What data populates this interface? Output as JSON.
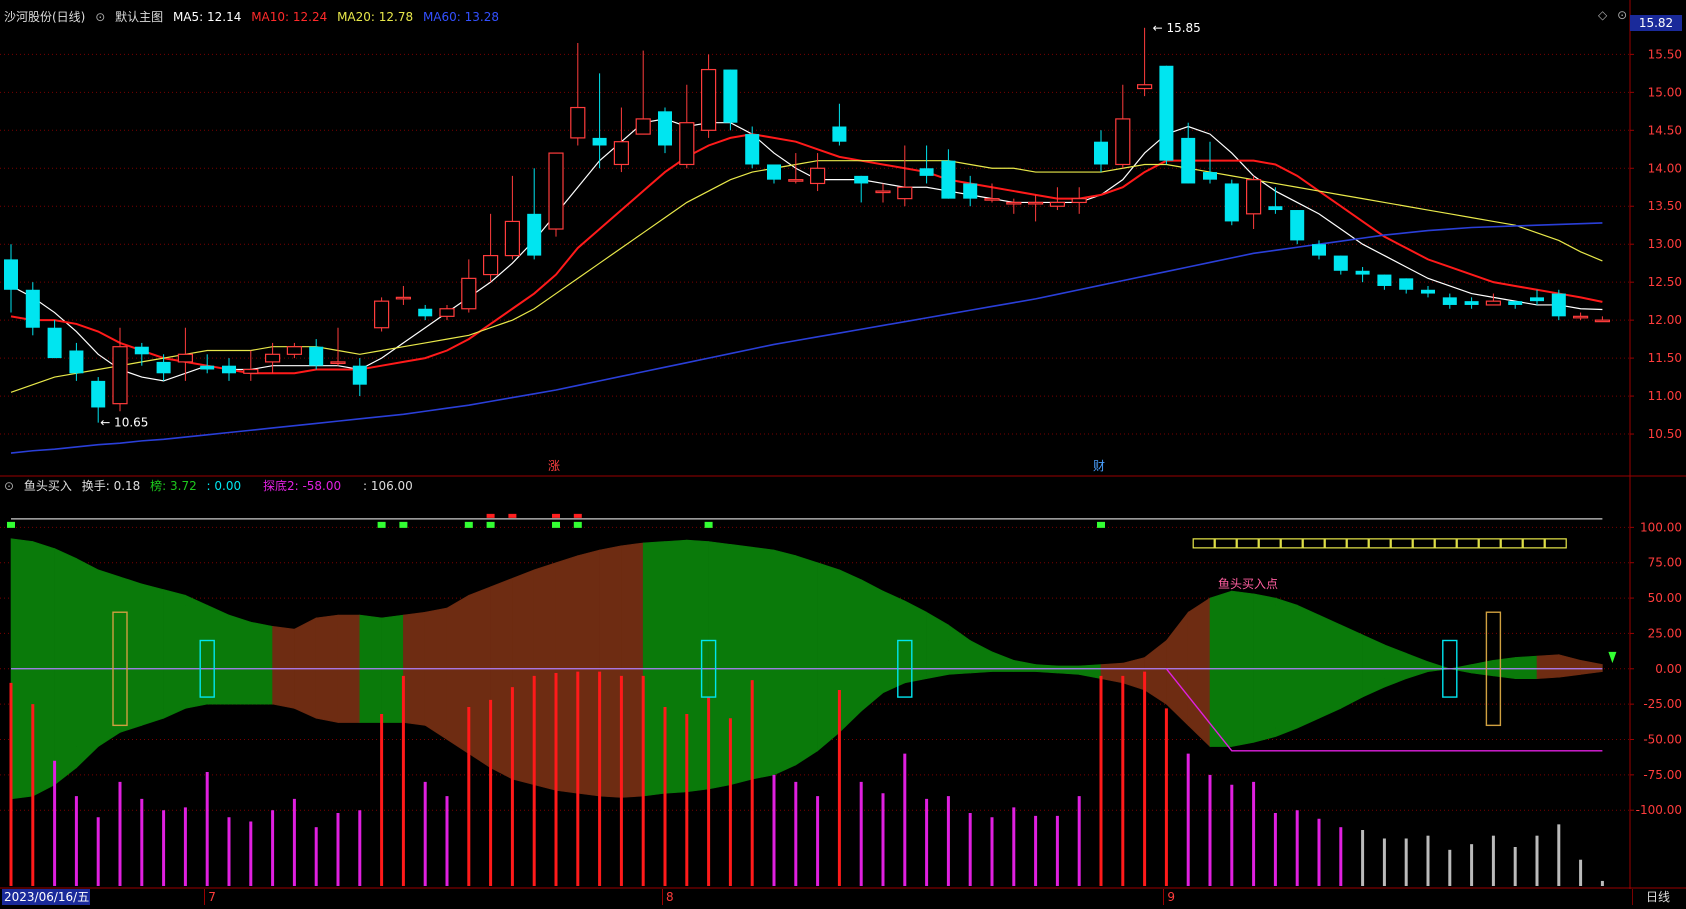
{
  "colors": {
    "up": "#ff3c3c",
    "down": "#00e5f0",
    "ma5": "#ffffff",
    "ma10": "#ff1a1a",
    "ma20": "#e8e84a",
    "ma60": "#2a3fd8",
    "green_fill": "#0a7a0a",
    "brown_fill": "#6e2c12",
    "magenta": "#e020e0",
    "grid": "#7a0000"
  },
  "main_header": {
    "title": "沙河股份(日线)",
    "view_label": "默认主图",
    "ma5_label": "MA5: 12.14",
    "ma10_label": "MA10: 12.24",
    "ma20_label": "MA20: 12.78",
    "ma60_label": "MA60: 13.28"
  },
  "sub_header": {
    "indicator_name": "鱼头买入",
    "turnover_label": "换手: 0.18",
    "v1_label": "榜: 3.72",
    "v2_label": ": 0.00",
    "v3_label": "探底2: -58.00",
    "v4_label": ": 106.00"
  },
  "current_price_tag": "15.82",
  "bottom_bar": {
    "date_label": "2023/06/16/五",
    "month_labels": [
      "7",
      "8",
      "9"
    ],
    "period_button": "日线"
  },
  "chart_data": [
    {
      "type": "candlestick",
      "price_axis_ticks": [
        "15.50",
        "15.00",
        "14.50",
        "14.00",
        "13.50",
        "13.00",
        "12.50",
        "12.00",
        "11.50",
        "11.00",
        "10.50"
      ],
      "ylim": [
        10.0,
        15.9
      ],
      "annotations": {
        "high_label": "15.85",
        "low_label": "10.65",
        "marker_1": "涨",
        "marker_2": "财"
      },
      "ohlc": [
        [
          12.8,
          12.4,
          13.0,
          12.1
        ],
        [
          12.4,
          11.9,
          12.5,
          11.8
        ],
        [
          11.9,
          11.5,
          12.0,
          11.5
        ],
        [
          11.6,
          11.3,
          11.7,
          11.2
        ],
        [
          11.2,
          10.85,
          11.25,
          10.65
        ],
        [
          10.9,
          11.65,
          11.9,
          10.8
        ],
        [
          11.65,
          11.55,
          11.7,
          11.4
        ],
        [
          11.45,
          11.3,
          11.55,
          11.2
        ],
        [
          11.45,
          11.55,
          11.9,
          11.2
        ],
        [
          11.4,
          11.35,
          11.55,
          11.3
        ],
        [
          11.4,
          11.3,
          11.5,
          11.2
        ],
        [
          11.3,
          11.35,
          11.6,
          11.2
        ],
        [
          11.45,
          11.55,
          11.7,
          11.3
        ],
        [
          11.55,
          11.65,
          11.7,
          11.5
        ],
        [
          11.65,
          11.4,
          11.75,
          11.35
        ],
        [
          11.45,
          11.45,
          11.9,
          11.4
        ],
        [
          11.4,
          11.15,
          11.5,
          11.0
        ],
        [
          11.9,
          12.25,
          12.3,
          11.85
        ],
        [
          12.3,
          12.3,
          12.45,
          12.2
        ],
        [
          12.15,
          12.05,
          12.2,
          12.0
        ],
        [
          12.05,
          12.15,
          12.2,
          12.0
        ],
        [
          12.15,
          12.55,
          12.8,
          12.1
        ],
        [
          12.6,
          12.85,
          13.4,
          12.5
        ],
        [
          12.85,
          13.3,
          13.9,
          12.8
        ],
        [
          13.4,
          12.85,
          14.0,
          12.8
        ],
        [
          13.2,
          14.2,
          14.2,
          13.1
        ],
        [
          14.4,
          14.8,
          15.65,
          14.3
        ],
        [
          14.4,
          14.3,
          15.25,
          14.0
        ],
        [
          14.05,
          14.35,
          14.8,
          13.95
        ],
        [
          14.45,
          14.65,
          15.55,
          14.5
        ],
        [
          14.75,
          14.3,
          14.8,
          14.2
        ],
        [
          14.05,
          14.6,
          15.1,
          14.0
        ],
        [
          14.5,
          15.3,
          15.5,
          14.4
        ],
        [
          15.3,
          14.6,
          15.3,
          14.5
        ],
        [
          14.45,
          14.05,
          14.55,
          14.0
        ],
        [
          14.05,
          13.85,
          14.05,
          13.8
        ],
        [
          13.85,
          13.85,
          14.2,
          13.8
        ],
        [
          13.8,
          14.0,
          14.2,
          13.7
        ],
        [
          14.55,
          14.35,
          14.85,
          14.3
        ],
        [
          13.9,
          13.8,
          13.9,
          13.55
        ],
        [
          13.7,
          13.7,
          13.8,
          13.55
        ],
        [
          13.6,
          13.75,
          14.3,
          13.5
        ],
        [
          14.0,
          13.9,
          14.3,
          13.8
        ],
        [
          14.1,
          13.6,
          14.25,
          13.6
        ],
        [
          13.8,
          13.6,
          13.9,
          13.5
        ],
        [
          13.6,
          13.6,
          13.8,
          13.55
        ],
        [
          13.55,
          13.55,
          13.6,
          13.4
        ],
        [
          13.55,
          13.55,
          13.65,
          13.3
        ],
        [
          13.5,
          13.55,
          13.75,
          13.45
        ],
        [
          13.55,
          13.6,
          13.75,
          13.4
        ],
        [
          14.35,
          14.05,
          14.5,
          13.95
        ],
        [
          14.05,
          14.65,
          15.1,
          14.0
        ],
        [
          15.05,
          15.1,
          15.85,
          14.95
        ],
        [
          15.35,
          14.1,
          15.35,
          14.05
        ],
        [
          14.4,
          13.8,
          14.6,
          13.8
        ],
        [
          13.95,
          13.85,
          14.35,
          13.8
        ],
        [
          13.8,
          13.3,
          13.85,
          13.25
        ],
        [
          13.4,
          13.85,
          13.9,
          13.2
        ],
        [
          13.5,
          13.45,
          13.75,
          13.4
        ],
        [
          13.45,
          13.05,
          13.45,
          13.0
        ],
        [
          13.0,
          12.85,
          13.05,
          12.8
        ],
        [
          12.85,
          12.65,
          12.85,
          12.6
        ],
        [
          12.65,
          12.6,
          12.7,
          12.5
        ],
        [
          12.6,
          12.45,
          12.6,
          12.4
        ],
        [
          12.55,
          12.4,
          12.55,
          12.35
        ],
        [
          12.4,
          12.35,
          12.45,
          12.3
        ],
        [
          12.3,
          12.2,
          12.35,
          12.15
        ],
        [
          12.25,
          12.2,
          12.3,
          12.15
        ],
        [
          12.2,
          12.25,
          12.35,
          12.2
        ],
        [
          12.25,
          12.2,
          12.25,
          12.15
        ],
        [
          12.3,
          12.25,
          12.4,
          12.2
        ],
        [
          12.35,
          12.05,
          12.4,
          12.0
        ],
        [
          12.05,
          12.05,
          12.1,
          12.0
        ],
        [
          12.0,
          12.0,
          12.05,
          11.98
        ]
      ],
      "series": [
        {
          "name": "MA5",
          "values": [
            12.45,
            12.3,
            12.1,
            11.85,
            11.55,
            11.35,
            11.25,
            11.2,
            11.3,
            11.4,
            11.35,
            11.35,
            11.4,
            11.4,
            11.4,
            11.4,
            11.35,
            11.5,
            11.7,
            11.9,
            12.1,
            12.3,
            12.5,
            12.75,
            13.05,
            13.4,
            13.75,
            14.1,
            14.35,
            14.6,
            14.65,
            14.55,
            14.6,
            14.6,
            14.45,
            14.2,
            14.0,
            13.85,
            13.85,
            13.85,
            13.8,
            13.75,
            13.75,
            13.7,
            13.65,
            13.6,
            13.55,
            13.55,
            13.55,
            13.55,
            13.65,
            13.85,
            14.2,
            14.45,
            14.55,
            14.45,
            14.2,
            13.9,
            13.7,
            13.55,
            13.4,
            13.2,
            13.0,
            12.85,
            12.7,
            12.55,
            12.45,
            12.35,
            12.3,
            12.25,
            12.2,
            12.2,
            12.15,
            12.14
          ]
        },
        {
          "name": "MA10",
          "values": [
            12.05,
            12.0,
            12.0,
            11.95,
            11.85,
            11.7,
            11.6,
            11.5,
            11.45,
            11.4,
            11.35,
            11.3,
            11.3,
            11.3,
            11.35,
            11.35,
            11.35,
            11.4,
            11.45,
            11.5,
            11.6,
            11.75,
            11.95,
            12.15,
            12.35,
            12.6,
            12.95,
            13.2,
            13.45,
            13.7,
            13.95,
            14.15,
            14.3,
            14.4,
            14.45,
            14.4,
            14.35,
            14.25,
            14.15,
            14.1,
            14.05,
            14.0,
            13.95,
            13.85,
            13.8,
            13.75,
            13.7,
            13.65,
            13.6,
            13.6,
            13.65,
            13.75,
            13.95,
            14.1,
            14.1,
            14.1,
            14.1,
            14.1,
            14.05,
            13.9,
            13.7,
            13.5,
            13.3,
            13.1,
            12.95,
            12.8,
            12.7,
            12.6,
            12.5,
            12.45,
            12.4,
            12.35,
            12.3,
            12.24
          ]
        },
        {
          "name": "MA20",
          "values": [
            11.05,
            11.15,
            11.25,
            11.3,
            11.35,
            11.4,
            11.45,
            11.5,
            11.55,
            11.6,
            11.6,
            11.6,
            11.65,
            11.65,
            11.65,
            11.6,
            11.55,
            11.6,
            11.65,
            11.7,
            11.75,
            11.8,
            11.9,
            12.0,
            12.15,
            12.35,
            12.55,
            12.75,
            12.95,
            13.15,
            13.35,
            13.55,
            13.7,
            13.85,
            13.95,
            14.0,
            14.05,
            14.1,
            14.1,
            14.1,
            14.1,
            14.1,
            14.1,
            14.1,
            14.05,
            14.0,
            14.0,
            13.95,
            13.95,
            13.95,
            13.95,
            14.0,
            14.05,
            14.05,
            14.0,
            13.95,
            13.9,
            13.85,
            13.8,
            13.75,
            13.7,
            13.65,
            13.6,
            13.55,
            13.5,
            13.45,
            13.4,
            13.35,
            13.3,
            13.25,
            13.15,
            13.05,
            12.9,
            12.78
          ]
        },
        {
          "name": "MA60",
          "values": [
            10.25,
            10.28,
            10.3,
            10.33,
            10.36,
            10.38,
            10.41,
            10.43,
            10.46,
            10.49,
            10.52,
            10.55,
            10.58,
            10.61,
            10.64,
            10.67,
            10.7,
            10.73,
            10.76,
            10.8,
            10.84,
            10.88,
            10.93,
            10.98,
            11.03,
            11.08,
            11.14,
            11.2,
            11.26,
            11.32,
            11.38,
            11.44,
            11.5,
            11.56,
            11.62,
            11.68,
            11.73,
            11.78,
            11.83,
            11.88,
            11.93,
            11.98,
            12.03,
            12.08,
            12.13,
            12.18,
            12.23,
            12.28,
            12.34,
            12.4,
            12.46,
            12.52,
            12.58,
            12.64,
            12.7,
            12.76,
            12.82,
            12.88,
            12.92,
            12.96,
            13.0,
            13.04,
            13.08,
            13.12,
            13.15,
            13.18,
            13.2,
            13.22,
            13.23,
            13.24,
            13.25,
            13.26,
            13.27,
            13.28
          ]
        }
      ]
    },
    {
      "type": "indicator",
      "axis_ticks": [
        "100.00",
        "75.00",
        "50.00",
        "25.00",
        "0.00",
        "-25.00",
        "-50.00",
        "-75.00",
        "-100.00"
      ],
      "ylim": [
        -155,
        125
      ],
      "annotation": "鱼头买入点",
      "bars": [
        -10,
        -25,
        -65,
        -90,
        -105,
        -80,
        -92,
        -100,
        -98,
        -73,
        -105,
        -108,
        -100,
        -92,
        -112,
        -102,
        -100,
        -32,
        -5,
        -80,
        -90,
        -27,
        -22,
        -13,
        -5,
        -3,
        -2,
        -2,
        -5,
        -5,
        -27,
        -32,
        -20,
        -35,
        -8,
        -75,
        -80,
        -90,
        -15,
        -80,
        -88,
        -60,
        -92,
        -90,
        -102,
        -105,
        -98,
        -104,
        -104,
        -90,
        -5,
        -5,
        -2,
        -28,
        -60,
        -75,
        -82,
        -80,
        -102,
        -100,
        -106,
        -112,
        -114,
        -120,
        -120,
        -118,
        -128,
        -124,
        -118,
        -126,
        -118,
        -110,
        -135,
        -150
      ],
      "upper_band": [
        92,
        90,
        85,
        78,
        70,
        65,
        60,
        56,
        52,
        45,
        38,
        33,
        30,
        28,
        36,
        38,
        38,
        36,
        38,
        40,
        43,
        52,
        58,
        64,
        70,
        75,
        80,
        84,
        87,
        89,
        90,
        91,
        90,
        88,
        86,
        84,
        80,
        75,
        70,
        63,
        55,
        48,
        40,
        31,
        20,
        12,
        6,
        3,
        2,
        2,
        3,
        4,
        8,
        20,
        40,
        50,
        55,
        53,
        50,
        45,
        38,
        31,
        24,
        17,
        11,
        5,
        0,
        3,
        6,
        8,
        9,
        10,
        6,
        3
      ],
      "lower_band": [
        -92,
        -90,
        -82,
        -70,
        -55,
        -45,
        -40,
        -35,
        -28,
        -25,
        -25,
        -25,
        -25,
        -28,
        -35,
        -38,
        -38,
        -38,
        -38,
        -40,
        -50,
        -60,
        -70,
        -78,
        -82,
        -86,
        -88,
        -90,
        -91,
        -90,
        -88,
        -87,
        -85,
        -82,
        -78,
        -75,
        -68,
        -58,
        -45,
        -30,
        -17,
        -10,
        -7,
        -4,
        -3,
        -2,
        -2,
        -2,
        -3,
        -4,
        -7,
        -10,
        -15,
        -25,
        -40,
        -55,
        -55,
        -52,
        -48,
        -42,
        -35,
        -28,
        -20,
        -13,
        -7,
        -2,
        0,
        -3,
        -5,
        -7,
        -7,
        -6,
        -4,
        -2
      ],
      "fill_color_seq": [
        "g",
        "g",
        "g",
        "g",
        "g",
        "g",
        "g",
        "g",
        "g",
        "g",
        "g",
        "g",
        "b",
        "b",
        "b",
        "b",
        "g",
        "g",
        "b",
        "b",
        "b",
        "b",
        "b",
        "b",
        "b",
        "b",
        "b",
        "b",
        "b",
        "g",
        "g",
        "g",
        "g",
        "g",
        "g",
        "g",
        "g",
        "g",
        "g",
        "g",
        "g",
        "g",
        "g",
        "g",
        "g",
        "g",
        "g",
        "g",
        "g",
        "g",
        "b",
        "b",
        "b",
        "b",
        "b",
        "g",
        "g",
        "g",
        "g",
        "g",
        "g",
        "g",
        "g",
        "g",
        "g",
        "g",
        "g",
        "g",
        "g",
        "g",
        "b",
        "b",
        "b",
        "b"
      ]
    }
  ]
}
